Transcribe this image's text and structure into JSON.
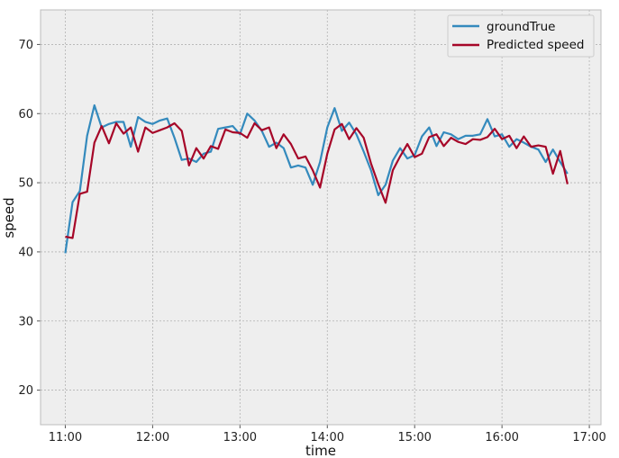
{
  "chart_data": {
    "type": "line",
    "title": "",
    "xlabel": "time",
    "ylabel": "speed",
    "xlim": [
      "10:43",
      "17:08"
    ],
    "ylim": [
      15,
      75
    ],
    "xticks": [
      "11:00",
      "12:00",
      "13:00",
      "14:00",
      "15:00",
      "16:00",
      "17:00"
    ],
    "yticks": [
      20,
      30,
      40,
      50,
      60,
      70
    ],
    "grid": true,
    "legend_position": "top-right",
    "colors": {
      "groundTrue": "#348ABD",
      "Predicted speed": "#A60628",
      "background": "#EEEEEE",
      "grid": "#B2B2B2"
    },
    "x": [
      "11:00",
      "11:05",
      "11:10",
      "11:15",
      "11:20",
      "11:25",
      "11:30",
      "11:35",
      "11:40",
      "11:45",
      "11:50",
      "11:55",
      "12:00",
      "12:05",
      "12:10",
      "12:15",
      "12:20",
      "12:25",
      "12:30",
      "12:35",
      "12:40",
      "12:45",
      "12:50",
      "12:55",
      "13:00",
      "13:05",
      "13:10",
      "13:15",
      "13:20",
      "13:25",
      "13:30",
      "13:35",
      "13:40",
      "13:45",
      "13:50",
      "13:55",
      "14:00",
      "14:05",
      "14:10",
      "14:15",
      "14:20",
      "14:25",
      "14:30",
      "14:35",
      "14:40",
      "14:45",
      "14:50",
      "14:55",
      "15:00",
      "15:05",
      "15:10",
      "15:15",
      "15:20",
      "15:25",
      "15:30",
      "15:35",
      "15:40",
      "15:45",
      "15:50",
      "15:55",
      "16:00",
      "16:05",
      "16:10",
      "16:15",
      "16:20",
      "16:25",
      "16:30",
      "16:35",
      "16:40",
      "16:45"
    ],
    "series": [
      {
        "name": "groundTrue",
        "values": [
          39.8,
          47.2,
          48.8,
          56.8,
          61.2,
          58.0,
          58.5,
          58.8,
          58.8,
          55.2,
          59.5,
          58.8,
          58.5,
          59.0,
          59.3,
          56.5,
          53.3,
          53.5,
          53.0,
          54.2,
          54.5,
          57.8,
          58.0,
          58.2,
          57.0,
          60.0,
          59.0,
          57.5,
          55.2,
          55.8,
          55.0,
          52.2,
          52.5,
          52.2,
          49.7,
          53.0,
          58.0,
          60.8,
          57.5,
          58.7,
          57.0,
          54.5,
          51.8,
          48.2,
          49.7,
          53.2,
          55.0,
          53.5,
          54.0,
          56.7,
          58.0,
          55.3,
          57.3,
          57.0,
          56.3,
          56.8,
          56.8,
          57.0,
          59.2,
          56.7,
          57.0,
          55.2,
          56.3,
          55.8,
          55.2,
          54.8,
          53.0,
          54.8,
          53.0,
          51.3
        ]
      },
      {
        "name": "Predicted speed",
        "values": [
          42.2,
          42.0,
          48.4,
          48.7,
          55.8,
          58.2,
          55.7,
          58.6,
          57.1,
          58.0,
          54.5,
          58.0,
          57.2,
          57.6,
          58.0,
          58.6,
          57.5,
          52.5,
          55.0,
          53.5,
          55.3,
          54.9,
          57.7,
          57.3,
          57.2,
          56.5,
          58.6,
          57.6,
          58.0,
          55.0,
          57.0,
          55.6,
          53.5,
          53.8,
          51.8,
          49.3,
          54.2,
          57.7,
          58.5,
          56.3,
          57.9,
          56.5,
          52.8,
          49.8,
          47.1,
          51.8,
          53.8,
          55.6,
          53.7,
          54.2,
          56.6,
          57.0,
          55.3,
          56.5,
          55.9,
          55.6,
          56.3,
          56.2,
          56.6,
          57.8,
          56.3,
          56.8,
          55.0,
          56.7,
          55.2,
          55.4,
          55.2,
          51.3,
          54.6,
          49.8
        ]
      }
    ]
  }
}
